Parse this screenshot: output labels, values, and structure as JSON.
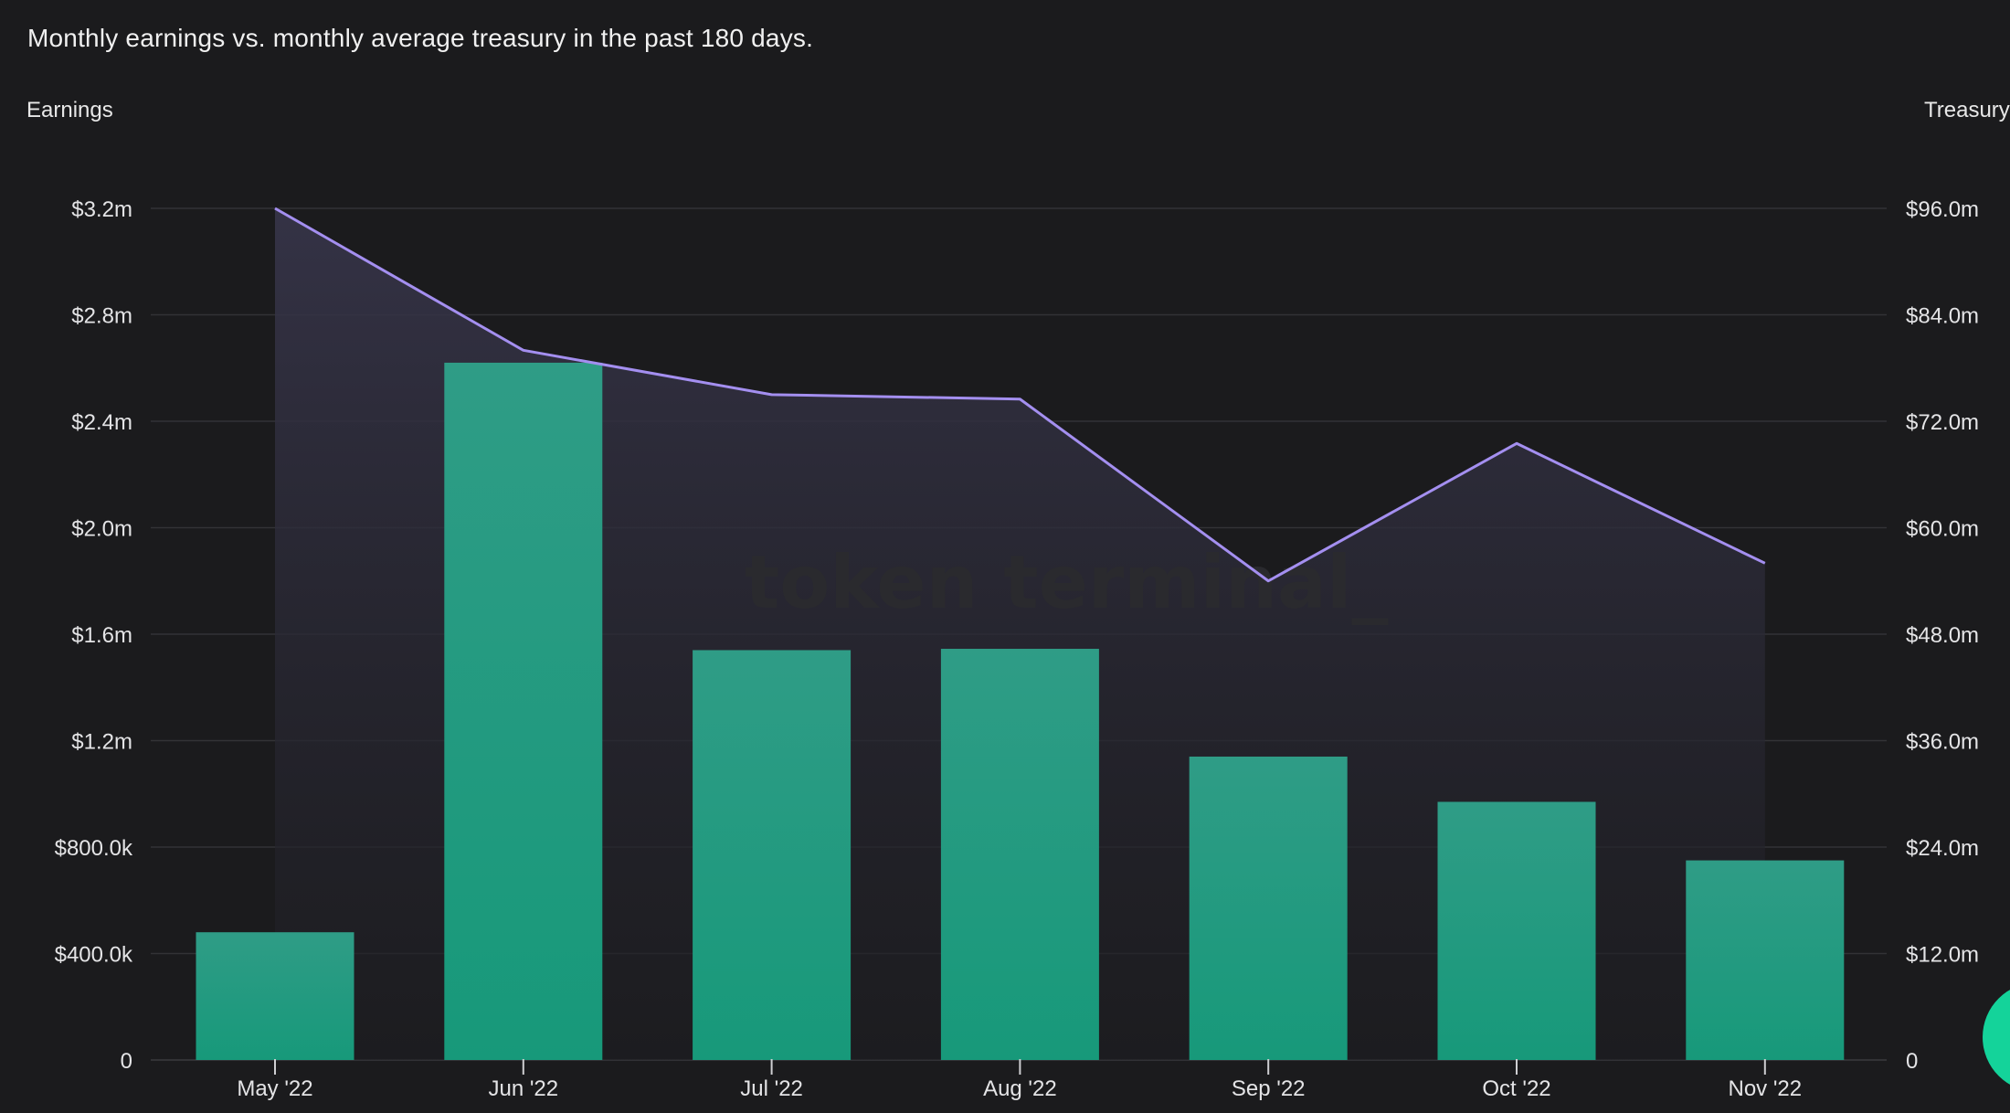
{
  "chart_data": {
    "type": "bar+line",
    "title": "Monthly earnings vs. monthly average treasury in the past 180 days.",
    "left_axis_label": "Earnings",
    "right_axis_label": "Treasury",
    "watermark": "token terminal_",
    "categories": [
      "May '22",
      "Jun '22",
      "Jul '22",
      "Aug '22",
      "Sep '22",
      "Oct '22",
      "Nov '22"
    ],
    "series": [
      {
        "type": "bar",
        "axis": "left",
        "color": "#1f9e80",
        "values": [
          480000,
          2620000,
          1540000,
          1545000,
          1140000,
          970000,
          750000
        ]
      },
      {
        "type": "area-line",
        "axis": "right",
        "color": "#a48ff0",
        "values": [
          96000000,
          80000000,
          75000000,
          74500000,
          54000000,
          69500000,
          56000000
        ]
      }
    ],
    "left_ylim": [
      0,
      3200000
    ],
    "right_ylim": [
      0,
      96000000
    ],
    "left_ticks": [
      {
        "value": 0,
        "label": "0"
      },
      {
        "value": 400000,
        "label": "$400.0k"
      },
      {
        "value": 800000,
        "label": "$800.0k"
      },
      {
        "value": 1200000,
        "label": "$1.2m"
      },
      {
        "value": 1600000,
        "label": "$1.6m"
      },
      {
        "value": 2000000,
        "label": "$2.0m"
      },
      {
        "value": 2400000,
        "label": "$2.4m"
      },
      {
        "value": 2800000,
        "label": "$2.8m"
      },
      {
        "value": 3200000,
        "label": "$3.2m"
      }
    ],
    "right_ticks": [
      {
        "value": 0,
        "label": "0"
      },
      {
        "value": 12000000,
        "label": "$12.0m"
      },
      {
        "value": 24000000,
        "label": "$24.0m"
      },
      {
        "value": 36000000,
        "label": "$36.0m"
      },
      {
        "value": 48000000,
        "label": "$48.0m"
      },
      {
        "value": 60000000,
        "label": "$60.0m"
      },
      {
        "value": 72000000,
        "label": "$72.0m"
      },
      {
        "value": 84000000,
        "label": "$84.0m"
      },
      {
        "value": 96000000,
        "label": "$96.0m"
      }
    ],
    "grid": true,
    "legend": "none"
  },
  "colors": {
    "background": "#1b1b1d",
    "gridline": "#333336",
    "bar_top": "#2f9c86",
    "bar_bottom": "#17997a",
    "line": "#a48ff0",
    "fab": "#14d39a"
  }
}
